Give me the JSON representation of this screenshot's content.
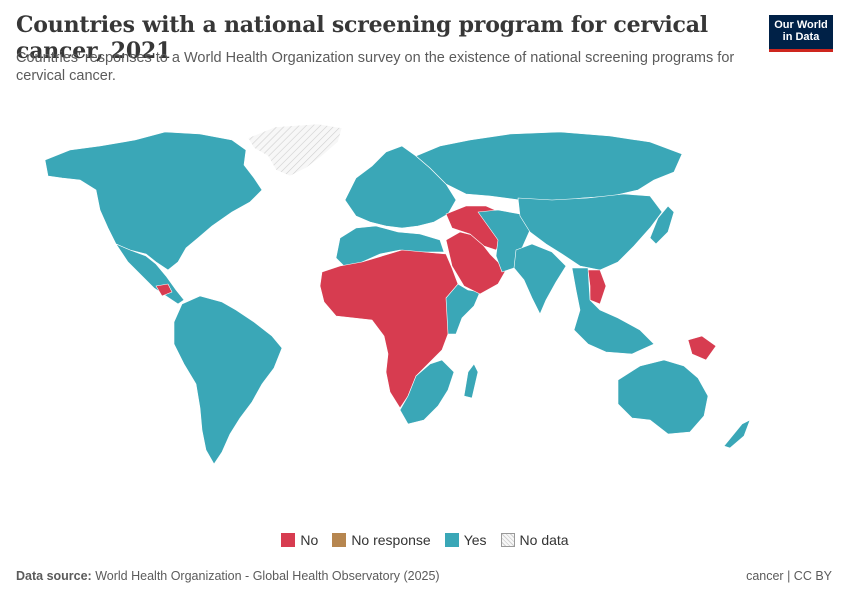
{
  "header": {
    "title": "Countries with a national screening program for cervical cancer, 2021",
    "subtitle": "Countries' responses to a World Health Organization survey on the existence of national screening programs for cervical cancer.",
    "logo_line1": "Our World",
    "logo_line2": "in Data"
  },
  "colors": {
    "no": "#d73c50",
    "no_response": "#b6864f",
    "yes": "#3aa7b7",
    "no_data": "#f2f2f2"
  },
  "legend": {
    "items": [
      {
        "label": "No",
        "key": "no"
      },
      {
        "label": "No response",
        "key": "no_response"
      },
      {
        "label": "Yes",
        "key": "yes"
      },
      {
        "label": "No data",
        "key": "no_data"
      }
    ]
  },
  "map": {
    "regions": [
      {
        "name": "Greenland",
        "status": "no_data"
      },
      {
        "name": "North America",
        "status": "yes"
      },
      {
        "name": "Central America",
        "status": "yes"
      },
      {
        "name": "Honduras",
        "status": "no"
      },
      {
        "name": "Suriname",
        "status": "no"
      },
      {
        "name": "South America",
        "status": "yes"
      },
      {
        "name": "Europe",
        "status": "yes"
      },
      {
        "name": "Russia",
        "status": "yes"
      },
      {
        "name": "North Africa",
        "status": "yes"
      },
      {
        "name": "Sub-Saharan Africa",
        "status": "no"
      },
      {
        "name": "Southern Africa",
        "status": "yes"
      },
      {
        "name": "East Africa",
        "status": "yes"
      },
      {
        "name": "Madagascar",
        "status": "yes"
      },
      {
        "name": "Arabian Peninsula",
        "status": "no"
      },
      {
        "name": "Afghanistan / Pakistan / Central Asia",
        "status": "no"
      },
      {
        "name": "Middle East",
        "status": "yes"
      },
      {
        "name": "India",
        "status": "yes"
      },
      {
        "name": "China / East Asia",
        "status": "yes"
      },
      {
        "name": "Japan",
        "status": "yes"
      },
      {
        "name": "Laos / Cambodia",
        "status": "no"
      },
      {
        "name": "Southeast Asia",
        "status": "yes"
      },
      {
        "name": "Papua New Guinea",
        "status": "no"
      },
      {
        "name": "Australia",
        "status": "yes"
      },
      {
        "name": "New Zealand",
        "status": "yes"
      }
    ]
  },
  "footer": {
    "source_label": "Data source:",
    "source_text": "World Health Organization - Global Health Observatory (2025)",
    "right_text": "cancer | CC BY"
  }
}
